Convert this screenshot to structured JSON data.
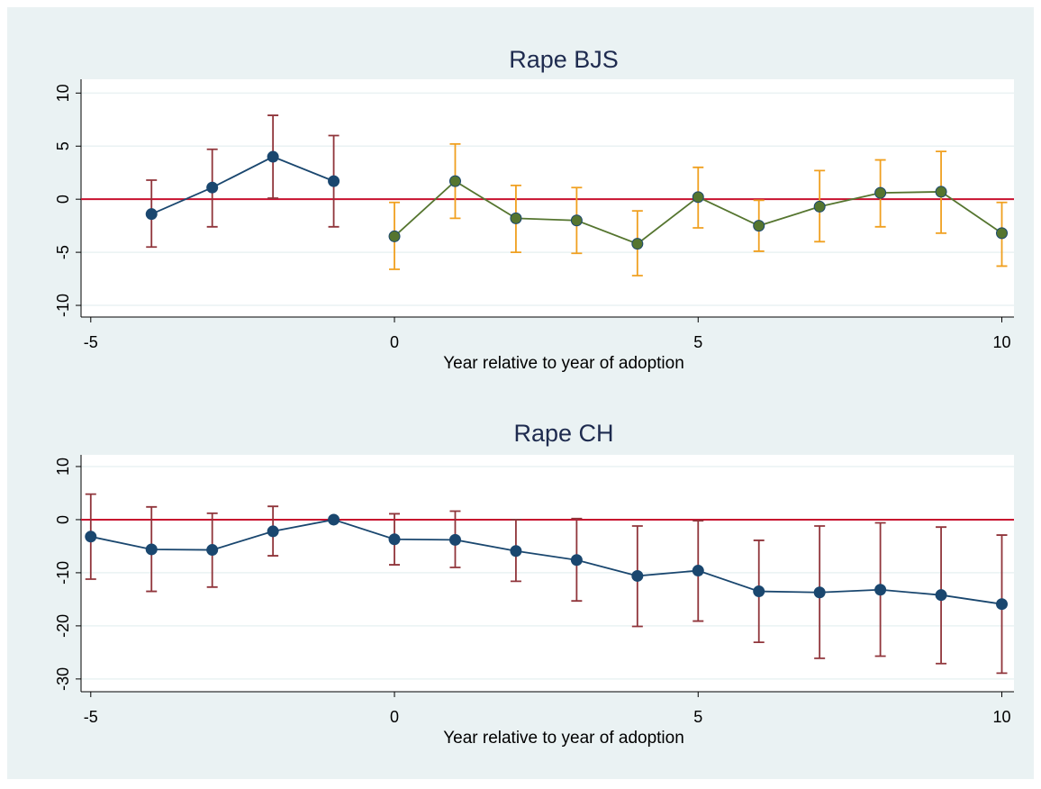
{
  "chart_data": [
    {
      "type": "line",
      "title": "Rape BJS",
      "x_label": "Year relative to year of adoption",
      "xlim": [
        -5.16,
        10.2
      ],
      "xticks": [
        -5,
        0,
        5,
        10
      ],
      "ylim": [
        -11.1,
        11.3
      ],
      "yticks": [
        10,
        5,
        0,
        -5,
        -10
      ],
      "grid": true,
      "reference_line": {
        "value": 0,
        "color": "#c8102e"
      },
      "series": [
        {
          "color": "#1a476f",
          "ci_color": "#90353b",
          "x": [
            -4,
            -3,
            -2,
            -1
          ],
          "values": [
            -1.4,
            1.1,
            4.0,
            1.7
          ],
          "upper": [
            1.8,
            4.7,
            7.9,
            6.0
          ],
          "lower": [
            -4.5,
            -2.6,
            0.1,
            -2.6
          ]
        },
        {
          "color": "#55752f",
          "ci_color": "#f0a020",
          "x": [
            0,
            1,
            2,
            3,
            4,
            5,
            6,
            7,
            8,
            9,
            10
          ],
          "values": [
            -3.5,
            1.7,
            -1.8,
            -2.0,
            -4.2,
            0.2,
            -2.5,
            -0.7,
            0.6,
            0.7,
            -3.2
          ],
          "upper": [
            -0.3,
            5.2,
            1.3,
            1.1,
            -1.1,
            3.0,
            -0.1,
            2.7,
            3.7,
            4.5,
            -0.3
          ],
          "lower": [
            -6.6,
            -1.8,
            -5.0,
            -5.1,
            -7.2,
            -2.7,
            -4.9,
            -4.0,
            -2.6,
            -3.2,
            -6.3
          ]
        }
      ]
    },
    {
      "type": "line",
      "title": "Rape CH",
      "x_label": "Year relative to year of adoption",
      "xlim": [
        -5.16,
        10.2
      ],
      "xticks": [
        -5,
        0,
        5,
        10
      ],
      "ylim": [
        -32.4,
        12.2
      ],
      "yticks": [
        10,
        0,
        -10,
        -20,
        -30
      ],
      "grid": true,
      "reference_line": {
        "value": 0,
        "color": "#c8102e"
      },
      "series": [
        {
          "color": "#1a476f",
          "ci_color": "#90353b",
          "x": [
            -5,
            -4,
            -3,
            -2,
            -1,
            0,
            1,
            2,
            3,
            4,
            5,
            6,
            7,
            8,
            9,
            10
          ],
          "values": [
            -3.2,
            -5.6,
            -5.7,
            -2.2,
            0,
            -3.7,
            -3.8,
            -5.9,
            -7.6,
            -10.6,
            -9.6,
            -13.5,
            -13.7,
            -13.2,
            -14.2,
            -15.9
          ],
          "upper": [
            4.8,
            2.4,
            1.2,
            2.5,
            null,
            1.1,
            1.6,
            0,
            0.2,
            -1.2,
            -0.2,
            -3.9,
            -1.2,
            -0.6,
            -1.4,
            -2.9
          ],
          "lower": [
            -11.2,
            -13.5,
            -12.7,
            -6.8,
            null,
            -8.5,
            -9.0,
            -11.6,
            -15.3,
            -20.1,
            -19.1,
            -23.1,
            -26.1,
            -25.7,
            -27.1,
            -28.9
          ]
        }
      ]
    }
  ]
}
